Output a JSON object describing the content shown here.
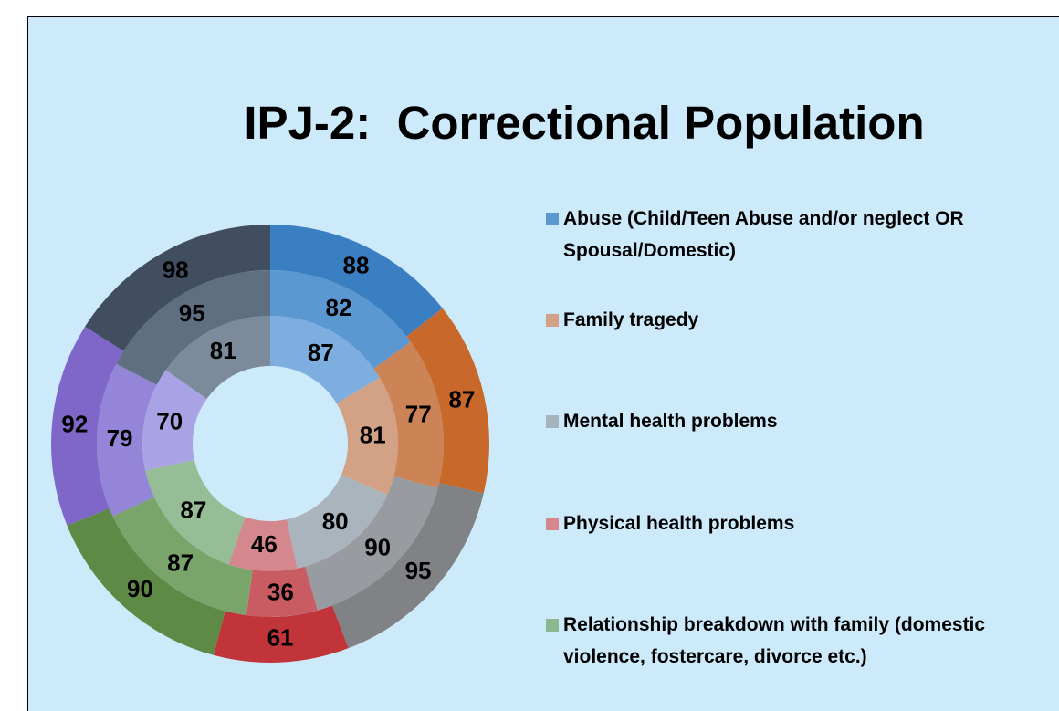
{
  "chart_data": {
    "type": "donut",
    "title": "IPJ-2:  Correctional Population",
    "categories": [
      "Abuse (Child/Teen Abuse and/or neglect OR Spousal/Domestic)",
      "Family tragedy",
      "Mental health problems",
      "Physical health problems",
      "Relationship breakdown with family (domestic violence, fostercare, divorce etc.)",
      null,
      null
    ],
    "legend_colors": [
      "#5b97d0",
      "#d3a186",
      "#a6b3bd",
      "#d4878d",
      "#8cb88f"
    ],
    "series": [
      {
        "values": [
          87,
          81,
          80,
          46,
          87,
          70,
          81
        ],
        "colors": [
          "#7eaedf",
          "#d3a186",
          "#aab4bc",
          "#d4878d",
          "#97bd97",
          "#a9a3e6",
          "#7b8b9b"
        ]
      },
      {
        "values": [
          82,
          77,
          90,
          36,
          87,
          79,
          95
        ],
        "colors": [
          "#5b97d0",
          "#cc8356",
          "#989ba0",
          "#c95c62",
          "#7aa56a",
          "#9585d8",
          "#5f6f82"
        ]
      },
      {
        "values": [
          88,
          87,
          95,
          61,
          90,
          92,
          98
        ],
        "colors": [
          "#3a7fc1",
          "#c8682a",
          "#808285",
          "#c0343a",
          "#5e8a45",
          "#7e67c9",
          "#414e60"
        ]
      }
    ]
  }
}
